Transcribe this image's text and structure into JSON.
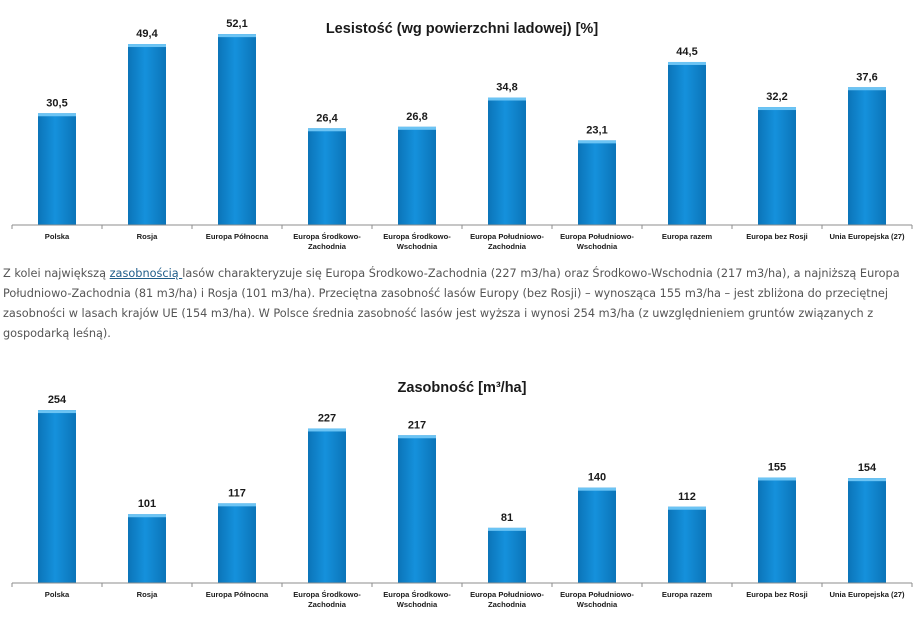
{
  "colors": {
    "bar": "#1591dc",
    "bar_dark": "#0b74b8",
    "bar_top": "#6cc4f4",
    "axis": "#8c8c8c",
    "text_body": "#555555",
    "link": "#1f5d8a"
  },
  "chart_data": [
    {
      "type": "bar",
      "title": "Lesistość (wg powierzchni ladowej) [%]",
      "xlabel": "",
      "ylabel": "",
      "categories": [
        [
          "Polska"
        ],
        [
          "Rosja"
        ],
        [
          "Europa Północna"
        ],
        [
          "Europa Środkowo-",
          "Zachodnia"
        ],
        [
          "Europa Środkowo-",
          "Wschodnia"
        ],
        [
          "Europa Południowo-",
          "Zachodnia"
        ],
        [
          "Europa Południowo-",
          "Wschodnia"
        ],
        [
          "Europa razem"
        ],
        [
          "Europa bez Rosji"
        ],
        [
          "Unia Europejska (27)"
        ]
      ],
      "values": [
        30.5,
        49.4,
        52.1,
        26.4,
        26.8,
        34.8,
        23.1,
        44.5,
        32.2,
        37.6
      ],
      "value_labels": [
        "30,5",
        "49,4",
        "52,1",
        "26,4",
        "26,8",
        "34,8",
        "23,1",
        "44,5",
        "32,2",
        "37,6"
      ],
      "ylim": [
        0,
        60
      ],
      "grid": false
    },
    {
      "type": "bar",
      "title": "Zasobność [m³/ha]",
      "xlabel": "",
      "ylabel": "",
      "categories": [
        [
          "Polska"
        ],
        [
          "Rosja"
        ],
        [
          "Europa Północna"
        ],
        [
          "Europa Środkowo-",
          "Zachodnia"
        ],
        [
          "Europa Środkowo-",
          "Wschodnia"
        ],
        [
          "Europa Południowo-",
          "Zachodnia"
        ],
        [
          "Europa Południowo-",
          "Wschodnia"
        ],
        [
          "Europa razem"
        ],
        [
          "Europa bez Rosji"
        ],
        [
          "Unia Europejska (27)"
        ]
      ],
      "values": [
        254,
        101,
        117,
        227,
        217,
        81,
        140,
        112,
        155,
        154
      ],
      "value_labels": [
        "254",
        "101",
        "117",
        "227",
        "217",
        "81",
        "140",
        "112",
        "155",
        "154"
      ],
      "ylim": [
        0,
        260
      ],
      "grid": false
    }
  ],
  "paragraph": {
    "l1_pre": "Z kolei największą ",
    "l1_link": "zasobnością ",
    "l1_post": "lasów charakteryzuje się Europa Środkowo-Zachodnia (227 m3/ha) oraz Środkowo-Wschodnia (217 m3/ha),  a najniższą Europa",
    "l2": "Południowo-Zachodnia (81 m3/ha) i Rosja (101 m3/ha). Przeciętna zasobność lasów Europy (bez Rosji) – wynosząca 155 m3/ha – jest zbliżona do przeciętnej",
    "l3": "zasobności w lasach krajów UE (154 m3/ha). W Polsce średnia zasobność lasów jest wyższa i wynosi 254 m3/ha (z uwzględnieniem gruntów związanych z",
    "l4": "gospodarką leśną)."
  }
}
